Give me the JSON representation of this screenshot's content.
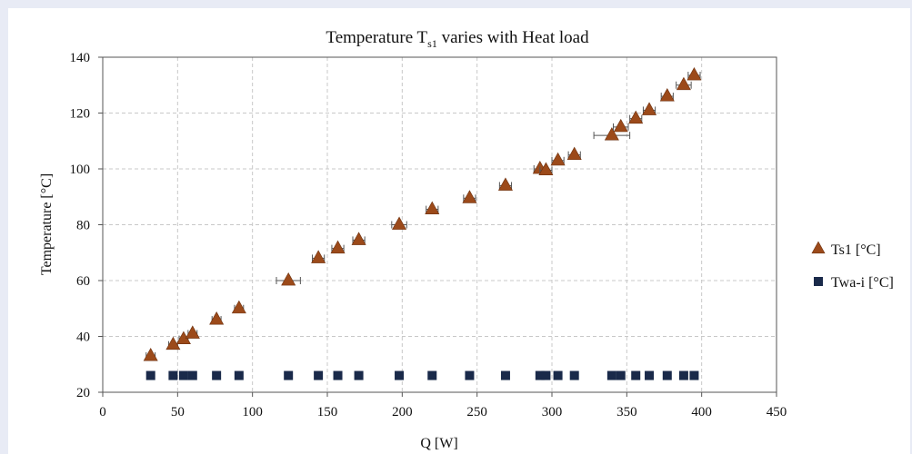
{
  "chart_data": {
    "type": "scatter",
    "title": "Temperature T",
    "title_subscript": "s1",
    "title_suffix": " varies with Heat load",
    "xlabel": "Q [W]",
    "ylabel": "Temperature [°C]",
    "xlim": [
      0,
      450
    ],
    "ylim": [
      20,
      140
    ],
    "xticks": [
      0,
      50,
      100,
      150,
      200,
      250,
      300,
      350,
      400,
      450
    ],
    "yticks": [
      20,
      40,
      60,
      80,
      100,
      120,
      140
    ],
    "grid": true,
    "legend_position": "right",
    "series": [
      {
        "name": "Ts1 [°C]",
        "marker": "triangle",
        "color": "#9c4a1a",
        "points": [
          {
            "x": 32,
            "y": 33,
            "xerr": 3
          },
          {
            "x": 47,
            "y": 37,
            "xerr": 3
          },
          {
            "x": 54,
            "y": 39,
            "xerr": 3
          },
          {
            "x": 60,
            "y": 41,
            "xerr": 3
          },
          {
            "x": 76,
            "y": 46,
            "xerr": 3
          },
          {
            "x": 91,
            "y": 50,
            "xerr": 3
          },
          {
            "x": 124,
            "y": 60,
            "xerr": 8
          },
          {
            "x": 144,
            "y": 68,
            "xerr": 4
          },
          {
            "x": 157,
            "y": 71.5,
            "xerr": 4
          },
          {
            "x": 171,
            "y": 74.5,
            "xerr": 4
          },
          {
            "x": 198,
            "y": 80,
            "xerr": 5
          },
          {
            "x": 220,
            "y": 85.5,
            "xerr": 4
          },
          {
            "x": 245,
            "y": 89.5,
            "xerr": 4
          },
          {
            "x": 269,
            "y": 94,
            "xerr": 4
          },
          {
            "x": 292,
            "y": 100,
            "xerr": 4
          },
          {
            "x": 296,
            "y": 99.5,
            "xerr": 4
          },
          {
            "x": 304,
            "y": 103,
            "xerr": 4
          },
          {
            "x": 315,
            "y": 105,
            "xerr": 4
          },
          {
            "x": 340,
            "y": 112,
            "xerr": 12
          },
          {
            "x": 346,
            "y": 115,
            "xerr": 5
          },
          {
            "x": 356,
            "y": 118,
            "xerr": 4
          },
          {
            "x": 365,
            "y": 121,
            "xerr": 4
          },
          {
            "x": 377,
            "y": 126,
            "xerr": 4
          },
          {
            "x": 388,
            "y": 130,
            "xerr": 5
          },
          {
            "x": 395,
            "y": 133.5,
            "xerr": 4
          }
        ]
      },
      {
        "name": "Twa-i [°C]",
        "marker": "square",
        "color": "#1a2a4a",
        "points": [
          {
            "x": 32,
            "y": 26
          },
          {
            "x": 47,
            "y": 26
          },
          {
            "x": 54,
            "y": 26
          },
          {
            "x": 60,
            "y": 26
          },
          {
            "x": 76,
            "y": 26
          },
          {
            "x": 91,
            "y": 26
          },
          {
            "x": 124,
            "y": 26
          },
          {
            "x": 144,
            "y": 26
          },
          {
            "x": 157,
            "y": 26
          },
          {
            "x": 171,
            "y": 26
          },
          {
            "x": 198,
            "y": 26
          },
          {
            "x": 220,
            "y": 26
          },
          {
            "x": 245,
            "y": 26
          },
          {
            "x": 269,
            "y": 26
          },
          {
            "x": 292,
            "y": 26
          },
          {
            "x": 296,
            "y": 26
          },
          {
            "x": 304,
            "y": 26
          },
          {
            "x": 315,
            "y": 26
          },
          {
            "x": 340,
            "y": 26
          },
          {
            "x": 346,
            "y": 26
          },
          {
            "x": 356,
            "y": 26
          },
          {
            "x": 365,
            "y": 26
          },
          {
            "x": 377,
            "y": 26
          },
          {
            "x": 388,
            "y": 26
          },
          {
            "x": 395,
            "y": 26
          }
        ]
      }
    ]
  }
}
